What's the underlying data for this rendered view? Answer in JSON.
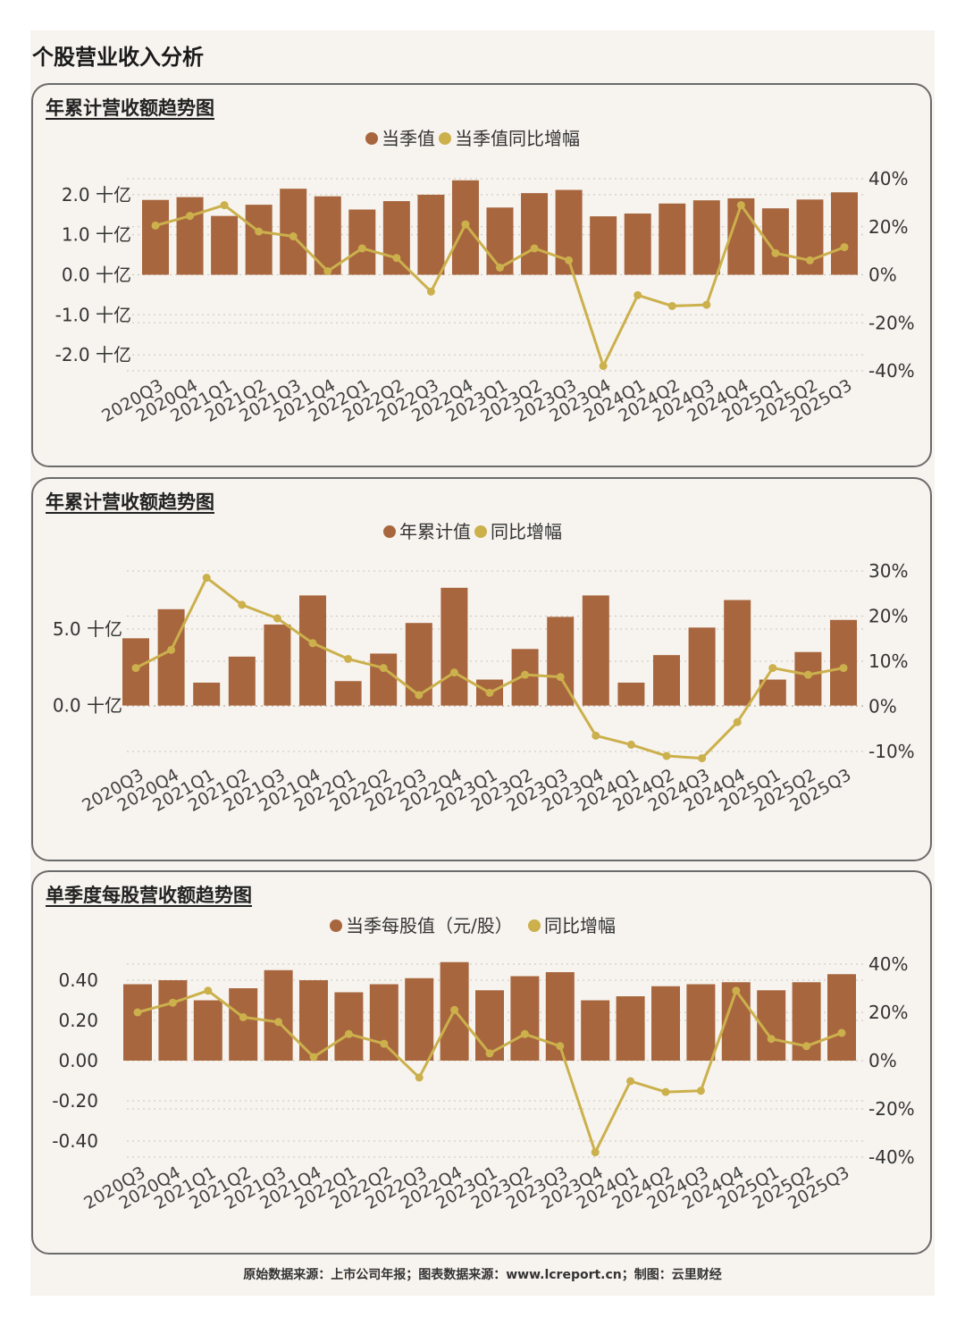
{
  "page_title": "个股营业收入分析",
  "footer": "原始数据来源：上市公司年报；图表数据来源：www.lcreport.cn；制图：云里财经",
  "colors": {
    "bar": "#a8663e",
    "line": "#cbb04c",
    "grid": "#c8c2b8",
    "text": "#333333"
  },
  "chart_data": [
    {
      "type": "bar",
      "title": "年累计营收额趋势图",
      "categories": [
        "2020Q3",
        "2020Q4",
        "2021Q1",
        "2021Q2",
        "2021Q3",
        "2021Q4",
        "2022Q1",
        "2022Q2",
        "2022Q3",
        "2022Q4",
        "2023Q1",
        "2023Q2",
        "2023Q3",
        "2023Q4",
        "2024Q1",
        "2024Q2",
        "2024Q3",
        "2024Q4",
        "2025Q1",
        "2025Q2",
        "2025Q3"
      ],
      "series": [
        {
          "name": "当季值",
          "kind": "bar",
          "axis": "left",
          "values": [
            1.87,
            1.94,
            1.47,
            1.75,
            2.15,
            1.96,
            1.63,
            1.84,
            2.0,
            2.36,
            1.68,
            2.04,
            2.12,
            1.46,
            1.53,
            1.78,
            1.86,
            1.91,
            1.66,
            1.88,
            2.06
          ]
        },
        {
          "name": "当季值同比增幅",
          "kind": "line",
          "axis": "right",
          "values": [
            20.5,
            24.5,
            29.0,
            18.0,
            16.0,
            1.5,
            11.0,
            7.0,
            -7.0,
            21.0,
            3.0,
            11.0,
            6.0,
            -38.0,
            -8.5,
            -13.0,
            -12.5,
            29.0,
            9.0,
            6.0,
            11.5
          ]
        }
      ],
      "y_left": {
        "ticks": [
          2.0,
          1.0,
          0.0,
          -1.0,
          -2.0
        ],
        "tick_labels": [
          "2.0 十亿",
          "1.0 十亿",
          "0.0 十亿",
          "-1.0 十亿",
          "-2.0 十亿"
        ],
        "range": [
          -2.4,
          2.4
        ]
      },
      "y_right": {
        "ticks": [
          40,
          20,
          0,
          -20,
          -40
        ],
        "tick_labels": [
          "40%",
          "20%",
          "0%",
          "-20%",
          "-40%"
        ],
        "range": [
          -40,
          40
        ]
      },
      "grid": true,
      "legend_position": "top-center"
    },
    {
      "type": "bar",
      "title": "年累计营收额趋势图",
      "categories": [
        "2020Q3",
        "2020Q4",
        "2021Q1",
        "2021Q2",
        "2021Q3",
        "2021Q4",
        "2022Q1",
        "2022Q2",
        "2022Q3",
        "2022Q4",
        "2023Q1",
        "2023Q2",
        "2023Q3",
        "2023Q4",
        "2024Q1",
        "2024Q2",
        "2024Q3",
        "2024Q4",
        "2025Q1",
        "2025Q2",
        "2025Q3"
      ],
      "series": [
        {
          "name": "年累计值",
          "kind": "bar",
          "axis": "left",
          "values": [
            4.4,
            6.3,
            1.5,
            3.2,
            5.3,
            7.2,
            1.6,
            3.4,
            5.4,
            7.7,
            1.7,
            3.7,
            5.8,
            7.2,
            1.5,
            3.3,
            5.1,
            6.9,
            1.7,
            3.5,
            5.6
          ]
        },
        {
          "name": "同比增幅",
          "kind": "line",
          "axis": "right",
          "values": [
            8.5,
            12.5,
            28.5,
            22.5,
            19.5,
            14.0,
            10.5,
            8.5,
            2.5,
            7.5,
            3.0,
            7.0,
            6.5,
            -6.5,
            -8.5,
            -11.0,
            -11.5,
            -3.5,
            8.5,
            7.0,
            8.5
          ]
        }
      ],
      "y_left": {
        "ticks": [
          5.0,
          0.0
        ],
        "tick_labels": [
          "5.0 十亿",
          "0.0 十亿"
        ],
        "range": [
          -3.0,
          8.8
        ]
      },
      "y_right": {
        "ticks": [
          30,
          20,
          10,
          0,
          -10
        ],
        "tick_labels": [
          "30%",
          "20%",
          "10%",
          "0%",
          "-10%"
        ],
        "range": [
          -10,
          30
        ]
      },
      "grid": true,
      "legend_position": "top-center"
    },
    {
      "type": "bar",
      "title": "单季度每股营收额趋势图",
      "categories": [
        "2020Q3",
        "2020Q4",
        "2021Q1",
        "2021Q2",
        "2021Q3",
        "2021Q4",
        "2022Q1",
        "2022Q2",
        "2022Q3",
        "2022Q4",
        "2023Q1",
        "2023Q2",
        "2023Q3",
        "2023Q4",
        "2024Q1",
        "2024Q2",
        "2024Q3",
        "2024Q4",
        "2025Q1",
        "2025Q2",
        "2025Q3"
      ],
      "series": [
        {
          "name": "当季每股值（元/股）",
          "kind": "bar",
          "axis": "left",
          "values": [
            0.38,
            0.4,
            0.3,
            0.36,
            0.45,
            0.4,
            0.34,
            0.38,
            0.41,
            0.49,
            0.35,
            0.42,
            0.44,
            0.3,
            0.32,
            0.37,
            0.38,
            0.39,
            0.35,
            0.39,
            0.43
          ]
        },
        {
          "name": "同比增幅",
          "kind": "line",
          "axis": "right",
          "values": [
            20.0,
            24.0,
            29.0,
            18.0,
            16.0,
            1.5,
            11.0,
            7.0,
            -7.0,
            21.0,
            3.0,
            11.0,
            6.0,
            -38.0,
            -8.5,
            -13.0,
            -12.5,
            29.0,
            9.0,
            6.0,
            11.5
          ]
        }
      ],
      "y_left": {
        "ticks": [
          0.4,
          0.2,
          0.0,
          -0.2,
          -0.4
        ],
        "tick_labels": [
          "0.40",
          "0.20",
          "0.00",
          "-0.20",
          "-0.40"
        ],
        "range": [
          -0.48,
          0.48
        ]
      },
      "y_right": {
        "ticks": [
          40,
          20,
          0,
          -20,
          -40
        ],
        "tick_labels": [
          "40%",
          "20%",
          "0%",
          "-20%",
          "-40%"
        ],
        "range": [
          -40,
          40
        ]
      },
      "grid": true,
      "legend_position": "top-center"
    }
  ]
}
